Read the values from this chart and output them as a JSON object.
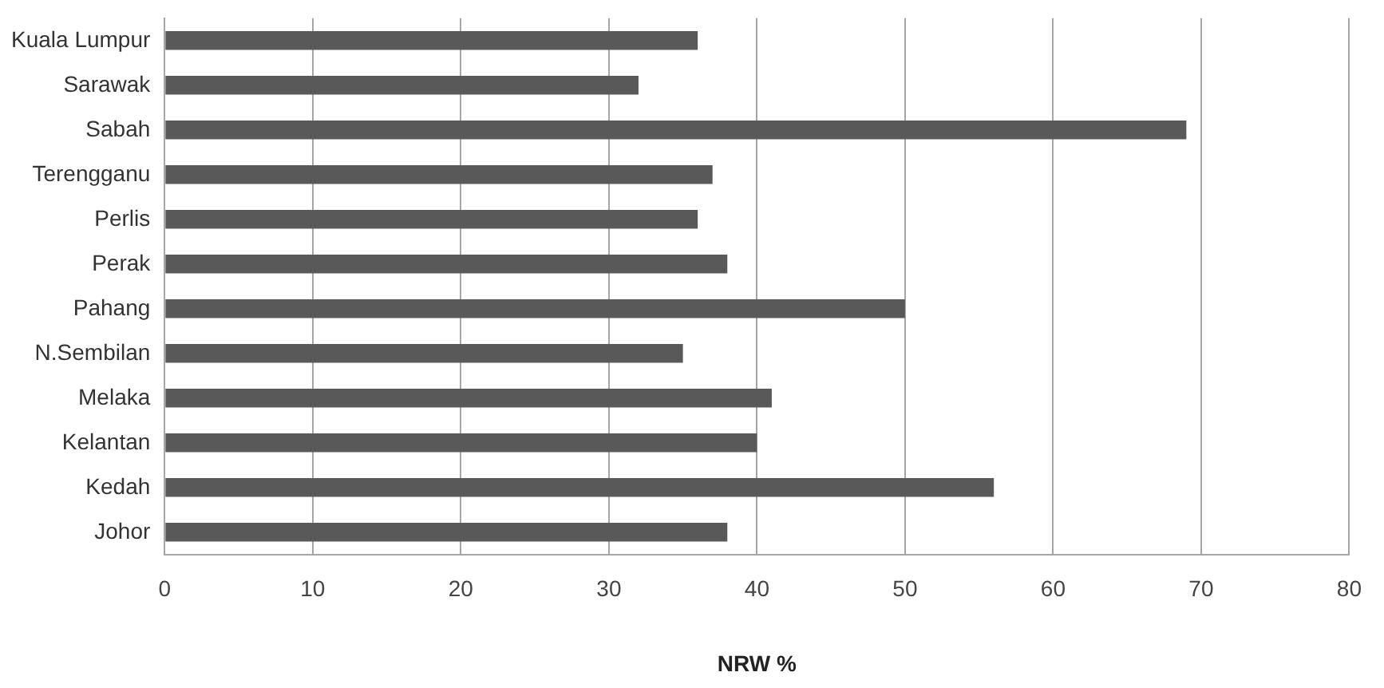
{
  "chart_data": {
    "type": "bar",
    "orientation": "horizontal",
    "xlabel": "NRW %",
    "categories": [
      "Kuala Lumpur",
      "Sarawak",
      "Sabah",
      "Terengganu",
      "Perlis",
      "Perak",
      "Pahang",
      "N.Sembilan",
      "Melaka",
      "Kelantan",
      "Kedah",
      "Johor"
    ],
    "values": [
      36,
      32,
      69,
      37,
      36,
      38,
      50,
      35,
      41,
      40,
      56,
      38
    ],
    "color": "#595959",
    "xlim": [
      0,
      80
    ],
    "xticks": [
      0,
      10,
      20,
      30,
      40,
      50,
      60,
      70,
      80
    ],
    "grid": "x",
    "legend": false
  }
}
